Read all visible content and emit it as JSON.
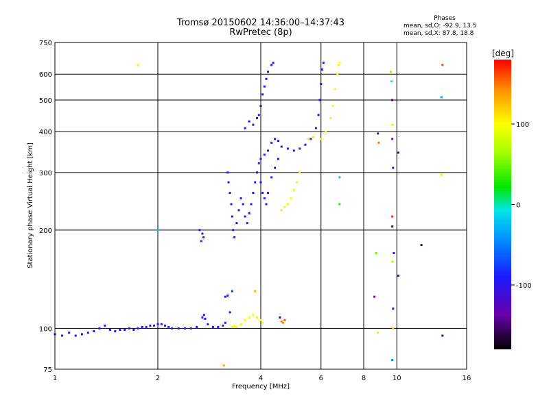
{
  "header": {
    "title": "Tromsø 20150602 14:36:00–14:37:43",
    "subtitle": "RwPretec (8p)",
    "phases_title": "Phases",
    "phases_o": "mean, sd,O: -92.9, 13.5",
    "phases_x": "mean, sd,X:  87.8, 18.8"
  },
  "colorbar": {
    "label": "[deg]",
    "min": -180,
    "max": 180,
    "ticks": [
      100,
      0,
      -100
    ],
    "tick_labels": [
      "100",
      "0",
      "-100"
    ]
  },
  "chart_data": {
    "type": "scatter",
    "title": "Tromsø 20150602 14:36:00–14:37:43",
    "subtitle": "RwPretec (8p)",
    "xlabel": "Frequency [MHz]",
    "ylabel": "Stationary phase Virtual Height [km]",
    "x_scale": "log",
    "y_scale": "log",
    "xlim": [
      1,
      16
    ],
    "ylim": [
      75,
      750
    ],
    "x_ticks": [
      1,
      2,
      4,
      6,
      8,
      10,
      16
    ],
    "x_tick_labels": [
      "1",
      "2",
      "4",
      "6",
      "8",
      "10",
      "16"
    ],
    "y_ticks": [
      75,
      100,
      200,
      300,
      400,
      500,
      600,
      750
    ],
    "y_tick_labels": [
      "75",
      "100",
      "200",
      "300",
      "400",
      "500",
      "600",
      "750"
    ],
    "grid": true,
    "color_encodes": "phase [deg]",
    "series": [
      {
        "points": [
          [
            1.0,
            96,
            -100
          ],
          [
            1.05,
            95,
            -105
          ],
          [
            1.1,
            97,
            -95
          ],
          [
            1.15,
            95,
            -100
          ],
          [
            1.2,
            96,
            -110
          ],
          [
            1.25,
            97,
            -98
          ],
          [
            1.3,
            98,
            -102
          ],
          [
            1.35,
            100,
            -95
          ],
          [
            1.4,
            102,
            -100
          ],
          [
            1.45,
            99,
            -105
          ],
          [
            1.5,
            98,
            -98
          ],
          [
            1.55,
            99,
            -100
          ],
          [
            1.6,
            99,
            -96
          ],
          [
            1.65,
            100,
            -100
          ],
          [
            1.7,
            99,
            -104
          ],
          [
            1.75,
            100,
            -100
          ],
          [
            1.8,
            101,
            -98
          ],
          [
            1.85,
            101,
            -95
          ],
          [
            1.9,
            102,
            -100
          ],
          [
            1.95,
            102,
            -102
          ],
          [
            2.0,
            103,
            -99
          ],
          [
            2.05,
            103,
            -100
          ],
          [
            2.1,
            102,
            -96
          ],
          [
            2.15,
            101,
            -100
          ],
          [
            2.2,
            100,
            -98
          ],
          [
            2.3,
            100,
            -103
          ],
          [
            2.4,
            100,
            -100
          ],
          [
            2.5,
            100,
            -97
          ],
          [
            2.6,
            101,
            -100
          ],
          [
            2.7,
            108,
            -90
          ],
          [
            2.73,
            110,
            -80
          ],
          [
            2.75,
            107,
            -92
          ],
          [
            2.8,
            103,
            -98
          ],
          [
            2.9,
            101,
            -100
          ],
          [
            3.0,
            101,
            -98
          ],
          [
            3.1,
            102,
            -100
          ],
          [
            3.15,
            104,
            -95
          ],
          [
            3.3,
            101,
            95
          ],
          [
            3.35,
            102,
            100
          ],
          [
            3.4,
            101,
            105
          ],
          [
            3.5,
            103,
            95
          ],
          [
            3.6,
            106,
            100
          ],
          [
            3.7,
            108,
            98
          ],
          [
            3.8,
            110,
            100
          ],
          [
            3.9,
            108,
            95
          ],
          [
            4.0,
            106,
            100
          ],
          [
            4.05,
            104,
            92
          ],
          [
            4.6,
            105,
            150
          ],
          [
            4.65,
            104,
            140
          ],
          [
            4.7,
            106,
            160
          ],
          [
            4.55,
            108,
            -150
          ],
          [
            3.15,
            125,
            -100
          ],
          [
            3.2,
            126,
            -95
          ],
          [
            3.25,
            112,
            -90
          ],
          [
            3.3,
            130,
            -80
          ],
          [
            3.85,
            130,
            130
          ],
          [
            2.65,
            200,
            -100
          ],
          [
            2.7,
            195,
            -95
          ],
          [
            2.72,
            190,
            -90
          ],
          [
            2.68,
            185,
            -80
          ],
          [
            3.2,
            300,
            -100
          ],
          [
            3.22,
            280,
            -105
          ],
          [
            3.25,
            260,
            -100
          ],
          [
            3.28,
            240,
            -110
          ],
          [
            3.3,
            220,
            -100
          ],
          [
            3.32,
            200,
            -105
          ],
          [
            3.35,
            190,
            -100
          ],
          [
            3.4,
            210,
            -95
          ],
          [
            3.45,
            230,
            -100
          ],
          [
            3.5,
            250,
            -105
          ],
          [
            3.55,
            240,
            -100
          ],
          [
            3.6,
            220,
            -98
          ],
          [
            3.65,
            210,
            -100
          ],
          [
            3.7,
            225,
            -102
          ],
          [
            3.75,
            240,
            -100
          ],
          [
            3.8,
            260,
            -105
          ],
          [
            3.85,
            280,
            -100
          ],
          [
            3.9,
            300,
            -95
          ],
          [
            3.95,
            320,
            -100
          ],
          [
            4.0,
            330,
            -100
          ],
          [
            4.1,
            340,
            -98
          ],
          [
            4.2,
            350,
            -100
          ],
          [
            4.3,
            370,
            -105
          ],
          [
            4.4,
            380,
            -100
          ],
          [
            4.5,
            375,
            -98
          ],
          [
            4.6,
            360,
            -100
          ],
          [
            4.8,
            355,
            -102
          ],
          [
            5.0,
            350,
            -100
          ],
          [
            5.2,
            355,
            -98
          ],
          [
            5.4,
            365,
            -100
          ],
          [
            5.6,
            380,
            -100
          ],
          [
            5.8,
            410,
            -95
          ],
          [
            5.9,
            450,
            -100
          ],
          [
            5.95,
            500,
            -100
          ],
          [
            6.0,
            560,
            -95
          ],
          [
            6.05,
            620,
            -100
          ],
          [
            6.1,
            650,
            -105
          ],
          [
            4.0,
            280,
            -100
          ],
          [
            4.05,
            260,
            -98
          ],
          [
            4.1,
            250,
            -100
          ],
          [
            4.15,
            240,
            -102
          ],
          [
            4.2,
            260,
            -100
          ],
          [
            4.3,
            290,
            -95
          ],
          [
            4.4,
            310,
            -100
          ],
          [
            4.5,
            330,
            -98
          ],
          [
            3.8,
            420,
            -100
          ],
          [
            3.9,
            440,
            -100
          ],
          [
            3.95,
            450,
            -105
          ],
          [
            3.7,
            430,
            -98
          ],
          [
            3.6,
            410,
            -100
          ],
          [
            4.0,
            480,
            -95
          ],
          [
            4.05,
            520,
            -100
          ],
          [
            4.1,
            550,
            -100
          ],
          [
            4.15,
            580,
            -98
          ],
          [
            4.2,
            610,
            -100
          ],
          [
            4.3,
            640,
            -105
          ],
          [
            4.35,
            650,
            -100
          ],
          [
            4.6,
            230,
            110
          ],
          [
            4.7,
            235,
            100
          ],
          [
            4.8,
            240,
            105
          ],
          [
            4.9,
            250,
            100
          ],
          [
            5.0,
            265,
            95
          ],
          [
            5.1,
            280,
            100
          ],
          [
            5.2,
            300,
            105
          ],
          [
            5.5,
            380,
            100
          ],
          [
            5.7,
            385,
            110
          ],
          [
            6.0,
            380,
            95
          ],
          [
            6.2,
            400,
            100
          ],
          [
            6.4,
            440,
            105
          ],
          [
            6.5,
            480,
            100
          ],
          [
            6.6,
            540,
            98
          ],
          [
            6.7,
            600,
            100
          ],
          [
            6.75,
            640,
            105
          ],
          [
            6.8,
            650,
            100
          ],
          [
            1.75,
            640,
            105
          ],
          [
            3.12,
            77,
            130
          ],
          [
            2.0,
            200,
            -20
          ],
          [
            8.8,
            395,
            -110
          ],
          [
            8.85,
            370,
            150
          ],
          [
            9.6,
            610,
            60
          ],
          [
            9.65,
            570,
            -10
          ],
          [
            9.7,
            500,
            -150
          ],
          [
            9.7,
            420,
            90
          ],
          [
            9.7,
            380,
            -130
          ],
          [
            9.75,
            310,
            -90
          ],
          [
            9.7,
            220,
            170
          ],
          [
            9.7,
            205,
            -160
          ],
          [
            9.8,
            170,
            -110
          ],
          [
            9.7,
            160,
            70
          ],
          [
            9.75,
            115,
            -100
          ],
          [
            9.75,
            100,
            120
          ],
          [
            9.7,
            80,
            -40
          ],
          [
            8.7,
            170,
            50
          ],
          [
            8.6,
            125,
            -140
          ],
          [
            8.8,
            97,
            110
          ],
          [
            10.1,
            145,
            -100
          ],
          [
            10.1,
            345,
            -130
          ],
          [
            11.8,
            180,
            -150
          ],
          [
            13.6,
            95,
            -150
          ],
          [
            13.5,
            510,
            -40
          ],
          [
            13.6,
            640,
            160
          ],
          [
            13.5,
            295,
            110
          ],
          [
            6.8,
            290,
            -20
          ],
          [
            6.8,
            240,
            30
          ]
        ]
      }
    ]
  }
}
